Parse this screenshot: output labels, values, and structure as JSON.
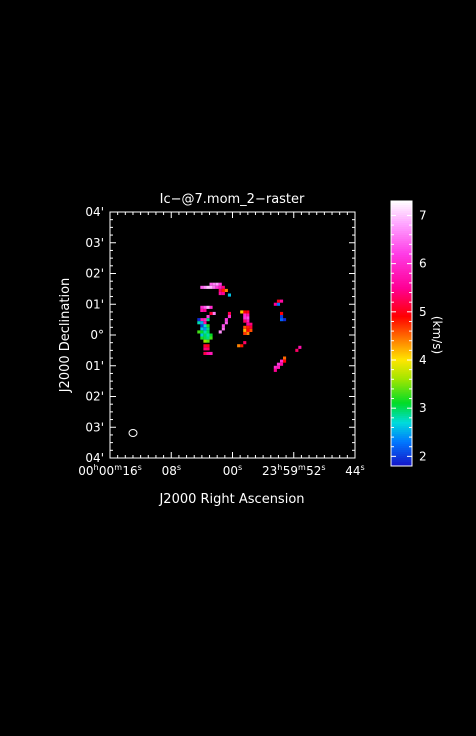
{
  "chart_data": {
    "type": "heatmap",
    "title": "Ic−@7.mom_2−raster",
    "xlabel": "J2000 Right Ascension",
    "ylabel": "J2000 Declination",
    "x_ticks": [
      {
        "h": "00",
        "m": "00",
        "s": "16"
      },
      {
        "h": "",
        "m": "",
        "s": "08"
      },
      {
        "h": "",
        "m": "",
        "s": "00"
      },
      {
        "h": "23",
        "m": "59",
        "s": "52"
      },
      {
        "h": "",
        "m": "",
        "s": "44"
      }
    ],
    "y_ticks": [
      "04'",
      "03'",
      "02'",
      "01'",
      "0°",
      "01'",
      "02'",
      "03'",
      "04'"
    ],
    "xlim_arcsec": [
      240,
      -240
    ],
    "ylim_arcmin": [
      -4,
      4
    ],
    "colorbar": {
      "label": "(km/s)",
      "range": [
        1.8,
        7.3
      ],
      "ticks": [
        "2",
        "3",
        "4",
        "5",
        "6",
        "7"
      ]
    },
    "beam": {
      "major_arcsec": 14,
      "minor_arcsec": 12,
      "pa_deg": 0
    },
    "pixels": [
      {
        "dx": -42,
        "dy": 99,
        "v": 6.4
      },
      {
        "dx": -36,
        "dy": 99,
        "v": 6.6
      },
      {
        "dx": -30,
        "dy": 99,
        "v": 6.8
      },
      {
        "dx": -24,
        "dy": 99,
        "v": 6.2
      },
      {
        "dx": -60,
        "dy": 93,
        "v": 6.4
      },
      {
        "dx": -54,
        "dy": 93,
        "v": 6.7
      },
      {
        "dx": -48,
        "dy": 93,
        "v": 7.0
      },
      {
        "dx": -42,
        "dy": 93,
        "v": 6.9
      },
      {
        "dx": -36,
        "dy": 93,
        "v": 6.5
      },
      {
        "dx": -30,
        "dy": 93,
        "v": 6.1
      },
      {
        "dx": -24,
        "dy": 93,
        "v": 5.8
      },
      {
        "dx": -18,
        "dy": 93,
        "v": 5.4
      },
      {
        "dx": -24,
        "dy": 87,
        "v": 5.3
      },
      {
        "dx": -18,
        "dy": 87,
        "v": 4.8
      },
      {
        "dx": -12,
        "dy": 87,
        "v": 4.4
      },
      {
        "dx": -24,
        "dy": 81,
        "v": 5.6
      },
      {
        "dx": -18,
        "dy": 81,
        "v": 5.5
      },
      {
        "dx": 90,
        "dy": 60,
        "v": 2.3
      },
      {
        "dx": 96,
        "dy": 66,
        "v": 5.6
      },
      {
        "dx": 90,
        "dy": 66,
        "v": 5.0
      },
      {
        "dx": 84,
        "dy": 60,
        "v": 5.5
      },
      {
        "dx": 30,
        "dy": 45,
        "v": 5.0
      },
      {
        "dx": 24,
        "dy": 45,
        "v": 4.9
      },
      {
        "dx": 18,
        "dy": 45,
        "v": 4.1
      },
      {
        "dx": 30,
        "dy": 39,
        "v": 5.7
      },
      {
        "dx": 24,
        "dy": 39,
        "v": 6.0
      },
      {
        "dx": 30,
        "dy": 33,
        "v": 6.3
      },
      {
        "dx": 24,
        "dy": 33,
        "v": 6.1
      },
      {
        "dx": 30,
        "dy": 27,
        "v": 5.8
      },
      {
        "dx": 24,
        "dy": 27,
        "v": 5.3
      },
      {
        "dx": 36,
        "dy": 21,
        "v": 5.4
      },
      {
        "dx": 30,
        "dy": 21,
        "v": 5.5
      },
      {
        "dx": 36,
        "dy": 15,
        "v": 5.1
      },
      {
        "dx": 30,
        "dy": 15,
        "v": 4.8
      },
      {
        "dx": 24,
        "dy": 15,
        "v": 4.6
      },
      {
        "dx": 36,
        "dy": 9,
        "v": 4.6
      },
      {
        "dx": 30,
        "dy": 9,
        "v": 4.9
      },
      {
        "dx": 24,
        "dy": 9,
        "v": 4.2
      },
      {
        "dx": 30,
        "dy": 3,
        "v": 4.4
      },
      {
        "dx": 24,
        "dy": 3,
        "v": 4.7
      },
      {
        "dx": 96,
        "dy": 42,
        "v": 4.9
      },
      {
        "dx": 96,
        "dy": 36,
        "v": 2.0
      },
      {
        "dx": 96,
        "dy": 30,
        "v": 2.2
      },
      {
        "dx": 102,
        "dy": 30,
        "v": 1.9
      },
      {
        "dx": -6,
        "dy": 78,
        "v": 2.6
      },
      {
        "dx": -6,
        "dy": 42,
        "v": 5.2
      },
      {
        "dx": -6,
        "dy": 36,
        "v": 6.0
      },
      {
        "dx": -12,
        "dy": 30,
        "v": 6.2
      },
      {
        "dx": -12,
        "dy": 24,
        "v": 6.4
      },
      {
        "dx": -18,
        "dy": 18,
        "v": 6.3
      },
      {
        "dx": -18,
        "dy": 12,
        "v": 6.5
      },
      {
        "dx": -24,
        "dy": 6,
        "v": 6.7
      },
      {
        "dx": 24,
        "dy": -15,
        "v": 5.3
      },
      {
        "dx": 18,
        "dy": -21,
        "v": 4.8
      },
      {
        "dx": 12,
        "dy": -21,
        "v": 4.4
      },
      {
        "dx": 132,
        "dy": -24,
        "v": 5.7
      },
      {
        "dx": 126,
        "dy": -30,
        "v": 5.3
      },
      {
        "dx": 102,
        "dy": -45,
        "v": 4.5
      },
      {
        "dx": 102,
        "dy": -51,
        "v": 4.9
      },
      {
        "dx": 96,
        "dy": -51,
        "v": 6.0
      },
      {
        "dx": 96,
        "dy": -57,
        "v": 5.6
      },
      {
        "dx": 90,
        "dy": -57,
        "v": 6.1
      },
      {
        "dx": 90,
        "dy": -63,
        "v": 5.8
      },
      {
        "dx": 84,
        "dy": -63,
        "v": 6.0
      },
      {
        "dx": 84,
        "dy": -69,
        "v": 5.5
      },
      {
        "dx": -48,
        "dy": 36,
        "v": 6.2
      },
      {
        "dx": -54,
        "dy": 30,
        "v": 5.9
      },
      {
        "dx": -60,
        "dy": 30,
        "v": 5.8
      },
      {
        "dx": -54,
        "dy": 24,
        "v": 5.7
      },
      {
        "dx": -48,
        "dy": 54,
        "v": 6.9
      },
      {
        "dx": -42,
        "dy": 54,
        "v": 6.0
      },
      {
        "dx": -36,
        "dy": 42,
        "v": 6.6
      },
      {
        "dx": -42,
        "dy": 42,
        "v": 5.1
      },
      {
        "dx": -48,
        "dy": 30,
        "v": 2.9
      },
      {
        "dx": -54,
        "dy": 18,
        "v": 2.7
      },
      {
        "dx": -48,
        "dy": 18,
        "v": 3.2
      },
      {
        "dx": -60,
        "dy": 18,
        "v": 2.0
      },
      {
        "dx": -54,
        "dy": 12,
        "v": 2.4
      },
      {
        "dx": -48,
        "dy": 12,
        "v": 2.9
      },
      {
        "dx": -60,
        "dy": 12,
        "v": 2.6
      },
      {
        "dx": -60,
        "dy": 6,
        "v": 3.1
      },
      {
        "dx": -54,
        "dy": 6,
        "v": 2.8
      },
      {
        "dx": -48,
        "dy": 6,
        "v": 3.0
      },
      {
        "dx": -66,
        "dy": 6,
        "v": 3.3
      },
      {
        "dx": -54,
        "dy": 0,
        "v": 3.0
      },
      {
        "dx": -48,
        "dy": 0,
        "v": 2.8
      },
      {
        "dx": -60,
        "dy": 0,
        "v": 2.6
      },
      {
        "dx": -42,
        "dy": 0,
        "v": 3.1
      },
      {
        "dx": -48,
        "dy": -6,
        "v": 2.9
      },
      {
        "dx": -42,
        "dy": -6,
        "v": 3.3
      },
      {
        "dx": -54,
        "dy": -6,
        "v": 3.0
      },
      {
        "dx": -60,
        "dy": -6,
        "v": 3.2
      },
      {
        "dx": -54,
        "dy": -12,
        "v": 3.6
      },
      {
        "dx": -48,
        "dy": -12,
        "v": 3.4
      },
      {
        "dx": -54,
        "dy": -21,
        "v": 5.1
      },
      {
        "dx": -48,
        "dy": -21,
        "v": 5.0
      },
      {
        "dx": -54,
        "dy": -27,
        "v": 5.4
      },
      {
        "dx": -48,
        "dy": -27,
        "v": 5.3
      },
      {
        "dx": -54,
        "dy": -36,
        "v": 5.2
      },
      {
        "dx": -48,
        "dy": -36,
        "v": 5.6
      },
      {
        "dx": -42,
        "dy": -36,
        "v": 5.8
      },
      {
        "dx": -66,
        "dy": 30,
        "v": 1.9
      },
      {
        "dx": -66,
        "dy": 24,
        "v": 2.8
      },
      {
        "dx": -60,
        "dy": 24,
        "v": 2.5
      },
      {
        "dx": -60,
        "dy": 54,
        "v": 6.0
      },
      {
        "dx": -54,
        "dy": 54,
        "v": 6.4
      },
      {
        "dx": -60,
        "dy": 48,
        "v": 5.7
      },
      {
        "dx": -54,
        "dy": 48,
        "v": 5.5
      }
    ]
  }
}
